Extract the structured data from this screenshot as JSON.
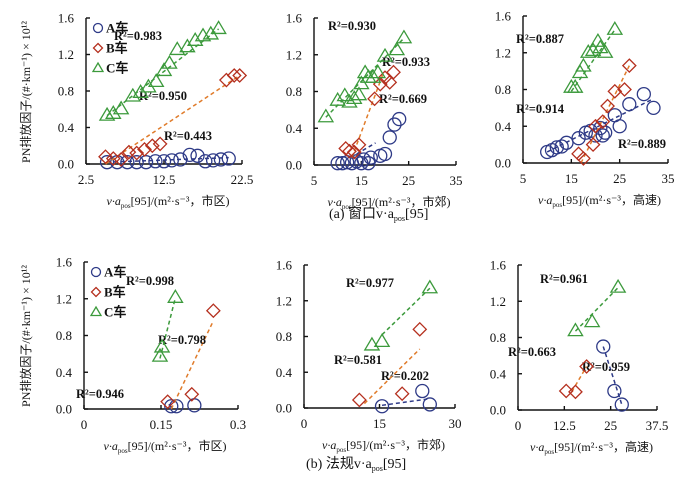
{
  "figure": {
    "ylabel": "PN排放因子/(#·km⁻¹) × 10¹²",
    "captions": {
      "a": "(a) 窗口v·a",
      "a_sub": "pos",
      "a_tail": "[95]",
      "b": "(b) 法规v·a",
      "b_sub": "pos",
      "b_tail": "[95]"
    },
    "legend": [
      "A车",
      "B车",
      "C车"
    ],
    "colors": {
      "A": "#2e3a87",
      "B": "#b5301f",
      "C": "#3c9a3c",
      "fitA": "#2e3a87",
      "fitB": "#e07b2a",
      "fitC": "#3c9a3c"
    }
  },
  "chart_data": [
    {
      "type": "scatter",
      "panel": "a-urban",
      "xlabel_pre": "v·a",
      "xlabel_sub": "pos",
      "xlabel_post": "[95]/(m²·s⁻³，市区)",
      "ylabel": "PN排放因子/(#·km⁻¹) × 10¹²",
      "xlim": [
        2.5,
        22.5
      ],
      "xticks": [
        "2.5",
        "12.5",
        "22.5"
      ],
      "xtickvals": [
        2.5,
        12.5,
        22.5
      ],
      "ylim": [
        0,
        1.6
      ],
      "yticks": [
        "0.0",
        "0.4",
        "0.8",
        "1.2",
        "1.6"
      ],
      "ytickvals": [
        0,
        0.4,
        0.8,
        1.2,
        1.6
      ],
      "legend": "top-left",
      "series": [
        {
          "name": "A车",
          "marker": "circle",
          "x": [
            5.2,
            6.5,
            7.8,
            9.0,
            10.2,
            11.4,
            12.5,
            13.5,
            14.6,
            15.8,
            16.8,
            17.8,
            18.8,
            19.8,
            20.8
          ],
          "y": [
            0.02,
            0.02,
            0.02,
            0.02,
            0.02,
            0.03,
            0.03,
            0.04,
            0.05,
            0.1,
            0.09,
            0.03,
            0.04,
            0.05,
            0.06
          ],
          "r2": "R²=0.443",
          "fit": [
            [
              5.2,
              0.02
            ],
            [
              20.8,
              0.07
            ]
          ]
        },
        {
          "name": "B车",
          "marker": "diamond",
          "x": [
            5.0,
            6.0,
            7.0,
            8.0,
            9.0,
            10.0,
            11.0,
            12.0,
            20.5,
            21.5,
            22.2
          ],
          "y": [
            0.08,
            0.06,
            0.05,
            0.13,
            0.12,
            0.16,
            0.2,
            0.22,
            0.92,
            0.97,
            0.97
          ],
          "r2": "R²=0.950",
          "fit": [
            [
              5.0,
              0.0
            ],
            [
              22.2,
              0.97
            ]
          ]
        },
        {
          "name": "C车",
          "marker": "triangle",
          "x": [
            5.2,
            6.0,
            7.0,
            8.5,
            9.5,
            10.5,
            11.5,
            12.5,
            13.2,
            14.2,
            15.5,
            16.5,
            17.5,
            18.5,
            19.5
          ],
          "y": [
            0.53,
            0.55,
            0.6,
            0.74,
            0.78,
            0.84,
            0.9,
            1.02,
            1.1,
            1.25,
            1.28,
            1.35,
            1.4,
            1.42,
            1.48
          ],
          "r2": "R²=0.983",
          "fit": [
            [
              5.2,
              0.53
            ],
            [
              19.5,
              1.48
            ]
          ]
        }
      ]
    },
    {
      "type": "scatter",
      "panel": "a-suburban",
      "xlabel_pre": "v·a",
      "xlabel_sub": "pos",
      "xlabel_post": "[95]/(m²·s⁻³，市郊)",
      "xlim": [
        5,
        35
      ],
      "xticks": [
        "5",
        "15",
        "25",
        "35"
      ],
      "xtickvals": [
        5,
        15,
        25,
        35
      ],
      "ylim": [
        0,
        1.6
      ],
      "yticks": [
        "0.0",
        "0.4",
        "0.8",
        "1.2",
        "1.6"
      ],
      "ytickvals": [
        0,
        0.4,
        0.8,
        1.2,
        1.6
      ],
      "series": [
        {
          "name": "A车",
          "marker": "circle",
          "x": [
            10.0,
            11.0,
            12.0,
            13.0,
            14.0,
            15.0,
            15.5,
            17.0,
            16.5,
            19.0,
            20.0,
            21.0,
            22.0,
            23.0
          ],
          "y": [
            0.02,
            0.02,
            0.03,
            0.02,
            0.04,
            0.02,
            0.06,
            0.08,
            0.02,
            0.1,
            0.12,
            0.3,
            0.44,
            0.5
          ],
          "r2": "R²=0.669",
          "fit": [
            [
              14.0,
              0.12
            ],
            [
              18.0,
              0.24
            ]
          ]
        },
        {
          "name": "B车",
          "marker": "diamond",
          "x": [
            11.7,
            12.5,
            13.5,
            14.5,
            17.8,
            19.0,
            20.0,
            21.0,
            21.8
          ],
          "y": [
            0.18,
            0.15,
            0.14,
            0.22,
            0.72,
            0.88,
            0.95,
            0.9,
            1.01
          ],
          "r2": "R²=0.933",
          "fit": [
            [
              13.0,
              0.08
            ],
            [
              19.5,
              0.98
            ]
          ]
        },
        {
          "name": "C车",
          "marker": "triangle",
          "x": [
            7.5,
            10.0,
            11.5,
            12.5,
            13.5,
            14.5,
            15.0,
            15.8,
            16.5,
            17.5,
            18.5,
            20.0,
            22.5,
            24.0
          ],
          "y": [
            0.52,
            0.7,
            0.75,
            0.68,
            0.72,
            0.76,
            0.88,
            1.0,
            0.95,
            0.95,
            1.0,
            1.18,
            1.25,
            1.38
          ],
          "r2": "R²=0.930",
          "fit": [
            [
              7.5,
              0.52
            ],
            [
              24.0,
              1.38
            ]
          ]
        }
      ]
    },
    {
      "type": "scatter",
      "panel": "a-highway",
      "xlabel_pre": "v·a",
      "xlabel_sub": "pos",
      "xlabel_post": "[95]/(m²·s⁻³，高速)",
      "xlim": [
        5,
        35
      ],
      "xticks": [
        "5",
        "15",
        "25",
        "35"
      ],
      "xtickvals": [
        5,
        15,
        25,
        35
      ],
      "ylim": [
        0,
        1.6
      ],
      "yticks": [
        "0.0",
        "0.4",
        "0.8",
        "1.2",
        "1.6"
      ],
      "ytickvals": [
        0,
        0.4,
        0.8,
        1.2,
        1.6
      ],
      "series": [
        {
          "name": "A车",
          "marker": "circle",
          "x": [
            10.0,
            11.0,
            12.0,
            13.0,
            14.0,
            16.5,
            18.0,
            19.0,
            20.0,
            21.0,
            21.5,
            22.0,
            24.0,
            25.0,
            27.0,
            30.0,
            32.0
          ],
          "y": [
            0.12,
            0.14,
            0.17,
            0.18,
            0.22,
            0.27,
            0.33,
            0.35,
            0.3,
            0.38,
            0.3,
            0.33,
            0.52,
            0.4,
            0.64,
            0.75,
            0.6
          ],
          "r2": "R²=0.889",
          "fit": [
            [
              10.0,
              0.12
            ],
            [
              32.0,
              0.7
            ]
          ]
        },
        {
          "name": "B车",
          "marker": "diamond",
          "x": [
            16.5,
            17.5,
            19.5,
            20.0,
            21.5,
            22.5,
            24.0,
            26.0,
            27.0
          ],
          "y": [
            0.1,
            0.05,
            0.2,
            0.4,
            0.45,
            0.62,
            0.78,
            0.8,
            1.06
          ],
          "r2": "R²=0.914",
          "fit": [
            [
              17.0,
              0.0
            ],
            [
              27.0,
              1.06
            ]
          ]
        },
        {
          "name": "C车",
          "marker": "triangle",
          "x": [
            15.0,
            15.8,
            16.8,
            17.5,
            18.5,
            19.5,
            20.5,
            21.0,
            22.0,
            24.0
          ],
          "y": [
            0.82,
            0.82,
            0.98,
            1.05,
            1.2,
            1.22,
            1.32,
            1.25,
            1.2,
            1.45
          ],
          "r2": "R²=0.887",
          "fit": [
            [
              15.0,
              0.78
            ],
            [
              24.0,
              1.45
            ]
          ]
        }
      ]
    },
    {
      "type": "scatter",
      "panel": "b-urban",
      "xlabel_pre": "v·a",
      "xlabel_sub": "pos",
      "xlabel_post": "[95]/(m²·s⁻³，市区)",
      "ylabel": "PN排放因子/(#·km⁻¹) × 10¹²",
      "xlim": [
        0,
        0.3
      ],
      "xticks": [
        "0",
        "0.15",
        "0.3"
      ],
      "xtickvals": [
        0,
        0.15,
        0.3
      ],
      "ylim": [
        0,
        1.6
      ],
      "yticks": [
        "0.0",
        "0.4",
        "0.8",
        "1.2",
        "1.6"
      ],
      "ytickvals": [
        0,
        0.4,
        0.8,
        1.2,
        1.6
      ],
      "legend": "top-left",
      "series": [
        {
          "name": "A车",
          "marker": "circle",
          "x": [
            0.17,
            0.18,
            0.215
          ],
          "y": [
            0.03,
            0.03,
            0.04
          ],
          "r2": "R²=0.946",
          "fit": [
            [
              0.165,
              0.05
            ],
            [
              0.175,
              0.0
            ]
          ]
        },
        {
          "name": "B车",
          "marker": "diamond",
          "x": [
            0.163,
            0.21,
            0.252
          ],
          "y": [
            0.08,
            0.16,
            1.07
          ],
          "r2": "R²=0.798",
          "fit": [
            [
              0.17,
              0.0
            ],
            [
              0.252,
              0.96
            ]
          ]
        },
        {
          "name": "C车",
          "marker": "triangle",
          "x": [
            0.148,
            0.152,
            0.178
          ],
          "y": [
            0.57,
            0.67,
            1.21
          ],
          "r2": "R²=0.998",
          "fit": [
            [
              0.148,
              0.55
            ],
            [
              0.178,
              1.21
            ]
          ]
        }
      ]
    },
    {
      "type": "scatter",
      "panel": "b-suburban",
      "xlabel_pre": "v·a",
      "xlabel_sub": "pos",
      "xlabel_post": "[95]/(m²·s⁻³，市郊)",
      "xlim": [
        0,
        30
      ],
      "xticks": [
        "0",
        "15",
        "30"
      ],
      "xtickvals": [
        0,
        15,
        30
      ],
      "ylim": [
        0,
        1.6
      ],
      "yticks": [
        "0.0",
        "0.4",
        "0.8",
        "1.2",
        "1.6"
      ],
      "ytickvals": [
        0,
        0.4,
        0.8,
        1.2,
        1.6
      ],
      "series": [
        {
          "name": "A车",
          "marker": "circle",
          "x": [
            15.5,
            23.5,
            25.0
          ],
          "y": [
            0.02,
            0.19,
            0.04
          ],
          "r2": "R²=0.202",
          "fit": [
            [
              15.5,
              0.03
            ],
            [
              24.5,
              0.1
            ]
          ]
        },
        {
          "name": "B车",
          "marker": "diamond",
          "x": [
            11.0,
            19.5,
            23.0
          ],
          "y": [
            0.09,
            0.16,
            0.88
          ],
          "r2": "R²=0.581",
          "fit": [
            [
              12.0,
              0.05
            ],
            [
              23.0,
              0.66
            ]
          ]
        },
        {
          "name": "C车",
          "marker": "triangle",
          "x": [
            13.5,
            15.5,
            25.0
          ],
          "y": [
            0.7,
            0.74,
            1.34
          ],
          "r2": "R²=0.977",
          "fit": [
            [
              15.5,
              0.82
            ],
            [
              25.0,
              1.34
            ]
          ]
        }
      ]
    },
    {
      "type": "scatter",
      "panel": "b-highway",
      "xlabel_pre": "v·a",
      "xlabel_sub": "pos",
      "xlabel_post": "[95]/(m²·s⁻³，高速)",
      "xlim": [
        0,
        37.5
      ],
      "xticks": [
        "0",
        "12.5",
        "25",
        "37.5"
      ],
      "xtickvals": [
        0,
        12.5,
        25,
        37.5
      ],
      "ylim": [
        0,
        1.6
      ],
      "yticks": [
        "0.0",
        "0.4",
        "0.8",
        "1.2",
        "1.6"
      ],
      "ytickvals": [
        0,
        0.4,
        0.8,
        1.2,
        1.6
      ],
      "series": [
        {
          "name": "A车",
          "marker": "circle",
          "x": [
            23.0,
            26.0,
            28.0
          ],
          "y": [
            0.7,
            0.21,
            0.06
          ],
          "r2": "R²=0.959",
          "fit": [
            [
              23.0,
              0.7
            ],
            [
              28.0,
              0.06
            ]
          ]
        },
        {
          "name": "B车",
          "marker": "diamond",
          "x": [
            13.0,
            15.5,
            18.5
          ],
          "y": [
            0.21,
            0.2,
            0.48
          ],
          "r2": "R²=0.663",
          "fit": [
            [
              14.5,
              0.2
            ],
            [
              18.5,
              0.48
            ]
          ]
        },
        {
          "name": "C车",
          "marker": "triangle",
          "x": [
            15.5,
            20.0,
            27.0
          ],
          "y": [
            0.87,
            0.97,
            1.35
          ],
          "r2": "R²=0.961",
          "fit": [
            [
              15.5,
              0.87
            ],
            [
              27.0,
              1.35
            ]
          ]
        }
      ]
    }
  ]
}
